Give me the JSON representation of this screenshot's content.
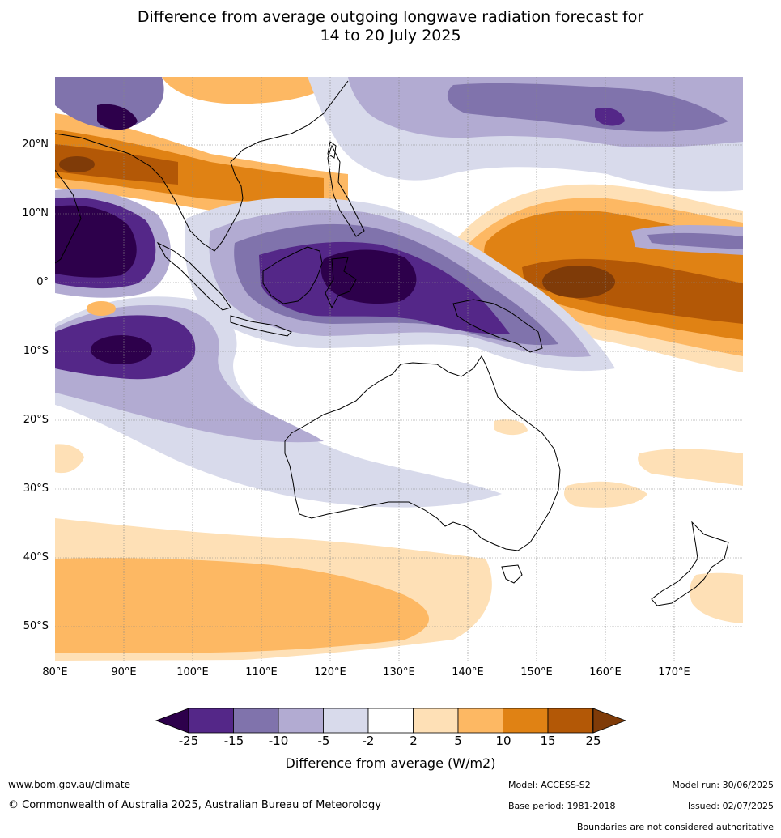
{
  "title": {
    "line1": "Difference from average outgoing longwave radiation forecast for",
    "line2": "14 to 20 July 2025"
  },
  "map": {
    "lat_labels": [
      "20°N",
      "10°N",
      "0°",
      "10°S",
      "20°S",
      "30°S",
      "40°S",
      "50°S"
    ],
    "lon_labels": [
      "80°E",
      "90°E",
      "100°E",
      "110°E",
      "120°E",
      "130°E",
      "140°E",
      "150°E",
      "160°E",
      "170°E"
    ]
  },
  "colorbar": {
    "ticks": [
      "-25",
      "-15",
      "-10",
      "-5",
      "-2",
      "2",
      "5",
      "10",
      "15",
      "25"
    ],
    "colors": [
      "#2d004b",
      "#542788",
      "#8073ac",
      "#b2abd2",
      "#d8daeb",
      "#ffffff",
      "#fee0b6",
      "#fdb863",
      "#e08214",
      "#b35806",
      "#7f3b08"
    ],
    "title": "Difference from average (W/m2)"
  },
  "footer": {
    "website": "www.bom.gov.au/climate",
    "copyright": "© Commonwealth of Australia 2025, Australian Bureau of Meteorology",
    "model": "Model: ACCESS-S2",
    "base_period": "Base period: 1981-2018",
    "model_run": "Model run: 30/06/2025",
    "issued": "Issued: 02/07/2025",
    "disclaimer": "Boundaries are not considered authoritative"
  }
}
